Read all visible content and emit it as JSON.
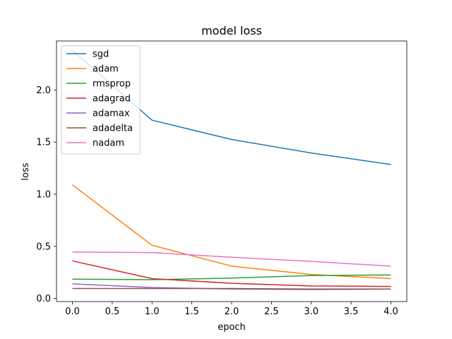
{
  "chart_data": {
    "type": "line",
    "title": "model loss",
    "xlabel": "epoch",
    "ylabel": "loss",
    "xlim": [
      -0.2,
      4.2
    ],
    "ylim": [
      -0.03,
      2.47
    ],
    "xticks": [
      0.0,
      0.5,
      1.0,
      1.5,
      2.0,
      2.5,
      3.0,
      3.5,
      4.0
    ],
    "xtick_labels": [
      "0.0",
      "0.5",
      "1.0",
      "1.5",
      "2.0",
      "2.5",
      "3.0",
      "3.5",
      "4.0"
    ],
    "yticks": [
      0.0,
      0.5,
      1.0,
      1.5,
      2.0
    ],
    "ytick_labels": [
      "0.0",
      "0.5",
      "1.0",
      "1.5",
      "2.0"
    ],
    "grid": false,
    "legend_position": "upper left",
    "x": [
      0,
      1,
      2,
      3,
      4
    ],
    "series": [
      {
        "name": "sgd",
        "color": "#1f77b4",
        "values": [
          2.38,
          1.71,
          1.525,
          1.395,
          1.285
        ]
      },
      {
        "name": "adam",
        "color": "#ff7f0e",
        "values": [
          1.09,
          0.51,
          0.31,
          0.23,
          0.19
        ]
      },
      {
        "name": "rmsprop",
        "color": "#2ca02c",
        "values": [
          0.185,
          0.18,
          0.195,
          0.22,
          0.225
        ]
      },
      {
        "name": "adagrad",
        "color": "#d62728",
        "values": [
          0.36,
          0.19,
          0.145,
          0.12,
          0.115
        ]
      },
      {
        "name": "adamax",
        "color": "#9467bd",
        "values": [
          0.14,
          0.105,
          0.09,
          0.085,
          0.09
        ]
      },
      {
        "name": "adadelta",
        "color": "#8c564b",
        "values": [
          0.095,
          0.095,
          0.095,
          0.09,
          0.09
        ]
      },
      {
        "name": "nadam",
        "color": "#e377c2",
        "values": [
          0.445,
          0.44,
          0.395,
          0.355,
          0.31
        ]
      }
    ]
  }
}
